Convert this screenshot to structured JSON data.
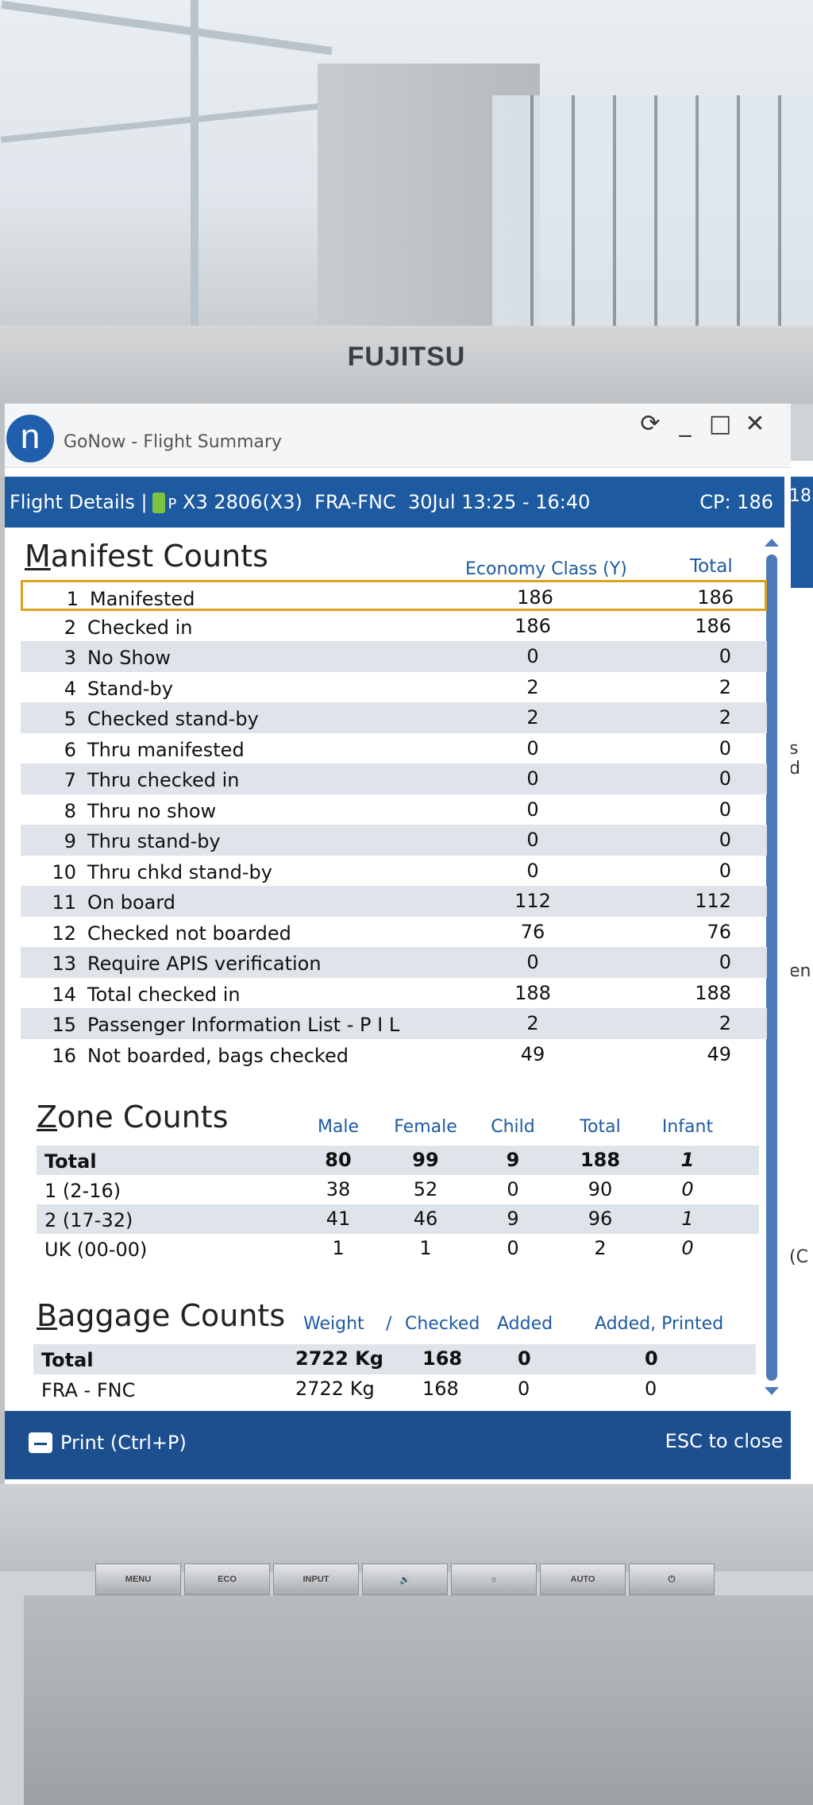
{
  "monitor": {
    "brand": "FUJITSU",
    "buttons": [
      "MENU",
      "ECO",
      "INPUT",
      "🔊",
      "☼",
      "AUTO",
      "⏻"
    ]
  },
  "window": {
    "app_icon_letter": "n",
    "title": "GoNow - Flight Summary",
    "controls": {
      "refresh": "⟳",
      "minimize": "_",
      "maximize": "□",
      "close": "✕"
    }
  },
  "flight_bar": {
    "label": "Flight Details |",
    "plane_code": "P",
    "flight": "X3 2806(X3)",
    "route": "FRA-FNC",
    "date_time": "30Jul 13:25 - 16:40",
    "cp": "CP: 186"
  },
  "manifest": {
    "title_first": "M",
    "title_rest": "anifest Counts",
    "col_economy": "Economy Class (Y)",
    "col_total": "Total",
    "rows": [
      {
        "n": "1",
        "label": "Manifested",
        "economy": "186",
        "total": "186"
      },
      {
        "n": "2",
        "label": "Checked in",
        "economy": "186",
        "total": "186"
      },
      {
        "n": "3",
        "label": "No Show",
        "economy": "0",
        "total": "0"
      },
      {
        "n": "4",
        "label": "Stand-by",
        "economy": "2",
        "total": "2"
      },
      {
        "n": "5",
        "label": "Checked stand-by",
        "economy": "2",
        "total": "2"
      },
      {
        "n": "6",
        "label": "Thru manifested",
        "economy": "0",
        "total": "0"
      },
      {
        "n": "7",
        "label": "Thru checked in",
        "economy": "0",
        "total": "0"
      },
      {
        "n": "8",
        "label": "Thru no show",
        "economy": "0",
        "total": "0"
      },
      {
        "n": "9",
        "label": "Thru stand-by",
        "economy": "0",
        "total": "0"
      },
      {
        "n": "10",
        "label": "Thru chkd stand-by",
        "economy": "0",
        "total": "0"
      },
      {
        "n": "11",
        "label": "On board",
        "economy": "112",
        "total": "112"
      },
      {
        "n": "12",
        "label": "Checked not boarded",
        "economy": "76",
        "total": "76"
      },
      {
        "n": "13",
        "label": "Require APIS verification",
        "economy": "0",
        "total": "0"
      },
      {
        "n": "14",
        "label": "Total checked in",
        "economy": "188",
        "total": "188"
      },
      {
        "n": "15",
        "label": "Passenger Information List - P I L",
        "economy": "2",
        "total": "2"
      },
      {
        "n": "16",
        "label": "Not boarded, bags checked",
        "economy": "49",
        "total": "49"
      }
    ]
  },
  "zone": {
    "title_first": "Z",
    "title_rest": "one Counts",
    "cols": {
      "male": "Male",
      "female": "Female",
      "child": "Child",
      "total": "Total",
      "infant": "Infant"
    },
    "rows": [
      {
        "label": "Total",
        "male": "80",
        "female": "99",
        "child": "9",
        "total": "188",
        "infant": "1"
      },
      {
        "label": "1 (2-16)",
        "male": "38",
        "female": "52",
        "child": "0",
        "total": "90",
        "infant": "0"
      },
      {
        "label": "2 (17-32)",
        "male": "41",
        "female": "46",
        "child": "9",
        "total": "96",
        "infant": "1"
      },
      {
        "label": "UK (00-00)",
        "male": "1",
        "female": "1",
        "child": "0",
        "total": "2",
        "infant": "0"
      }
    ]
  },
  "baggage": {
    "title_first": "B",
    "title_rest": "aggage Counts",
    "cols": {
      "weight": "Weight",
      "sep": "/",
      "checked": "Checked",
      "added": "Added",
      "added_printed": "Added, Printed"
    },
    "rows": [
      {
        "label": "Total",
        "weight": "2722 Kg",
        "checked": "168",
        "added": "0",
        "added_printed": "0"
      },
      {
        "label": "FRA - FNC",
        "weight": "2722 Kg",
        "checked": "168",
        "added": "0",
        "added_printed": "0"
      }
    ]
  },
  "footer": {
    "print": "Print (Ctrl+P)",
    "close_hint": "ESC to close"
  },
  "adjacent_window": {
    "fragment_top": "18",
    "fragment_a": "s d",
    "fragment_b": "en",
    "fragment_c": "(C"
  },
  "colors": {
    "accent_blue": "#1d5aa0",
    "highlight_border": "#d9a21e",
    "row_stripe": "#dfe4ea"
  }
}
